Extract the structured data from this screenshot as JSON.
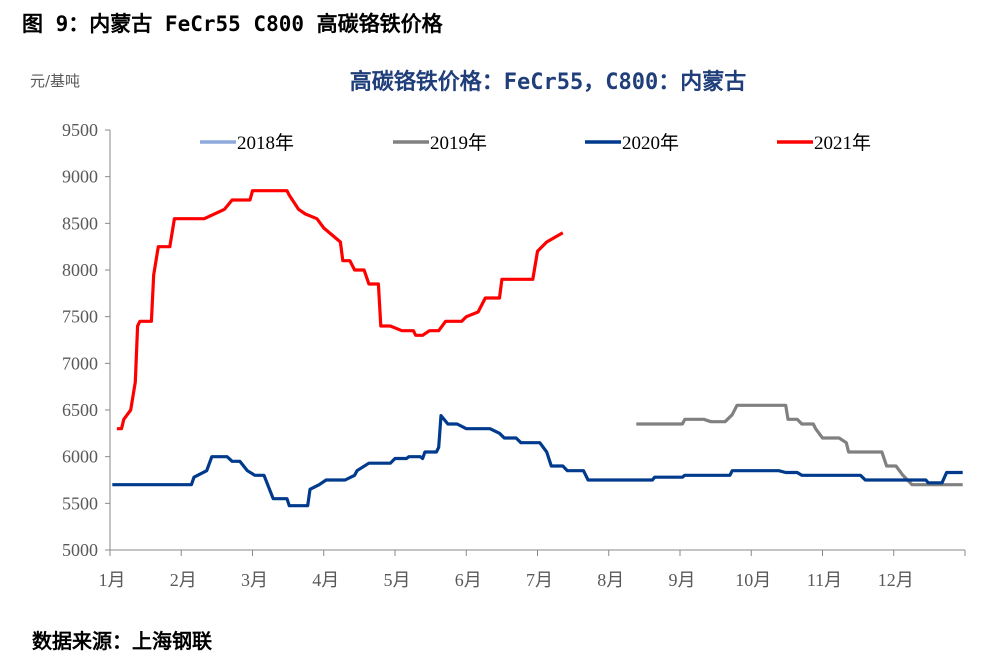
{
  "figure_title": "图 9：内蒙古 FeCr55 C800 高碳铬铁价格",
  "source": "数据来源：上海钢联",
  "chart_data": {
    "type": "line",
    "title": "高碳铬铁价格：FeCr55，C800：内蒙古",
    "ylabel": "元/基吨",
    "xlabel": "",
    "ylim": [
      5000,
      9500
    ],
    "yticks": [
      5000,
      5500,
      6000,
      6500,
      7000,
      7500,
      8000,
      8500,
      9000,
      9500
    ],
    "xticks": [
      "1月",
      "2月",
      "3月",
      "4月",
      "5月",
      "6月",
      "7月",
      "8月",
      "9月",
      "10月",
      "11月",
      "12月"
    ],
    "grid": false,
    "legend": "top",
    "series": [
      {
        "name": "2018年",
        "color": "#8EA9DB",
        "points": []
      },
      {
        "name": "2019年",
        "color": "#808080",
        "points": [
          [
            "08-13",
            6350
          ],
          [
            "09-02",
            6350
          ],
          [
            "09-03",
            6400
          ],
          [
            "09-11",
            6400
          ],
          [
            "09-14",
            6375
          ],
          [
            "09-20",
            6375
          ],
          [
            "09-23",
            6450
          ],
          [
            "09-25",
            6550
          ],
          [
            "10-16",
            6550
          ],
          [
            "10-17",
            6400
          ],
          [
            "10-21",
            6400
          ],
          [
            "10-23",
            6350
          ],
          [
            "10-28",
            6350
          ],
          [
            "10-29",
            6300
          ],
          [
            "11-01",
            6200
          ],
          [
            "11-08",
            6200
          ],
          [
            "11-11",
            6150
          ],
          [
            "11-12",
            6050
          ],
          [
            "11-26",
            6050
          ],
          [
            "11-28",
            5900
          ],
          [
            "12-02",
            5900
          ],
          [
            "12-05",
            5800
          ],
          [
            "12-07",
            5750
          ],
          [
            "12-09",
            5700
          ],
          [
            "12-31",
            5700
          ]
        ]
      },
      {
        "name": "2020年",
        "color": "#003A8C",
        "points": [
          [
            "01-02",
            5700
          ],
          [
            "02-05",
            5700
          ],
          [
            "02-06",
            5780
          ],
          [
            "02-11",
            5850
          ],
          [
            "02-13",
            6000
          ],
          [
            "02-19",
            6000
          ],
          [
            "02-21",
            5950
          ],
          [
            "02-24",
            5950
          ],
          [
            "02-27",
            5850
          ],
          [
            "03-02",
            5800
          ],
          [
            "03-06",
            5800
          ],
          [
            "03-10",
            5550
          ],
          [
            "03-16",
            5550
          ],
          [
            "03-17",
            5475
          ],
          [
            "03-25",
            5475
          ],
          [
            "03-26",
            5650
          ],
          [
            "03-30",
            5700
          ],
          [
            "04-02",
            5750
          ],
          [
            "04-10",
            5750
          ],
          [
            "04-14",
            5800
          ],
          [
            "04-15",
            5850
          ],
          [
            "04-20",
            5930
          ],
          [
            "04-29",
            5930
          ],
          [
            "05-01",
            5980
          ],
          [
            "05-06",
            5980
          ],
          [
            "05-07",
            6000
          ],
          [
            "05-12",
            6000
          ],
          [
            "05-13",
            5980
          ],
          [
            "05-14",
            6050
          ],
          [
            "05-19",
            6050
          ],
          [
            "05-20",
            6100
          ],
          [
            "05-21",
            6440
          ],
          [
            "05-24",
            6350
          ],
          [
            "05-28",
            6350
          ],
          [
            "06-01",
            6300
          ],
          [
            "06-11",
            6300
          ],
          [
            "06-15",
            6250
          ],
          [
            "06-17",
            6200
          ],
          [
            "06-22",
            6200
          ],
          [
            "06-24",
            6150
          ],
          [
            "07-02",
            6150
          ],
          [
            "07-05",
            6050
          ],
          [
            "07-07",
            5900
          ],
          [
            "07-12",
            5900
          ],
          [
            "07-14",
            5850
          ],
          [
            "07-21",
            5850
          ],
          [
            "07-23",
            5750
          ],
          [
            "08-20",
            5750
          ],
          [
            "08-21",
            5780
          ],
          [
            "09-02",
            5780
          ],
          [
            "09-03",
            5800
          ],
          [
            "09-22",
            5800
          ],
          [
            "09-23",
            5850
          ],
          [
            "10-13",
            5850
          ],
          [
            "10-16",
            5830
          ],
          [
            "10-21",
            5830
          ],
          [
            "10-23",
            5800
          ],
          [
            "11-17",
            5800
          ],
          [
            "11-19",
            5750
          ],
          [
            "12-15",
            5750
          ],
          [
            "12-16",
            5720
          ],
          [
            "12-22",
            5720
          ],
          [
            "12-24",
            5830
          ],
          [
            "12-31",
            5830
          ]
        ]
      },
      {
        "name": "2021年",
        "color": "#FF0000",
        "points": [
          [
            "01-04",
            6300
          ],
          [
            "01-06",
            6300
          ],
          [
            "01-07",
            6400
          ],
          [
            "01-10",
            6500
          ],
          [
            "01-12",
            6800
          ],
          [
            "01-13",
            7400
          ],
          [
            "01-14",
            7450
          ],
          [
            "01-19",
            7450
          ],
          [
            "01-20",
            7950
          ],
          [
            "01-22",
            8250
          ],
          [
            "01-27",
            8250
          ],
          [
            "01-29",
            8550
          ],
          [
            "02-10",
            8550
          ],
          [
            "02-18",
            8650
          ],
          [
            "02-21",
            8750
          ],
          [
            "02-28",
            8750
          ],
          [
            "03-01",
            8850
          ],
          [
            "03-16",
            8850
          ],
          [
            "03-17",
            8800
          ],
          [
            "03-21",
            8650
          ],
          [
            "03-24",
            8600
          ],
          [
            "03-29",
            8550
          ],
          [
            "04-01",
            8450
          ],
          [
            "04-08",
            8300
          ],
          [
            "04-09",
            8100
          ],
          [
            "04-12",
            8100
          ],
          [
            "04-14",
            8000
          ],
          [
            "04-18",
            8000
          ],
          [
            "04-20",
            7850
          ],
          [
            "04-24",
            7850
          ],
          [
            "04-25",
            7400
          ],
          [
            "04-29",
            7400
          ],
          [
            "05-04",
            7350
          ],
          [
            "05-09",
            7350
          ],
          [
            "05-10",
            7300
          ],
          [
            "05-13",
            7300
          ],
          [
            "05-16",
            7350
          ],
          [
            "05-20",
            7350
          ],
          [
            "05-23",
            7450
          ],
          [
            "05-30",
            7450
          ],
          [
            "06-01",
            7500
          ],
          [
            "06-06",
            7550
          ],
          [
            "06-09",
            7700
          ],
          [
            "06-15",
            7700
          ],
          [
            "06-16",
            7900
          ],
          [
            "06-29",
            7900
          ],
          [
            "07-01",
            8200
          ],
          [
            "07-05",
            8300
          ],
          [
            "07-12",
            8400
          ]
        ]
      }
    ]
  }
}
